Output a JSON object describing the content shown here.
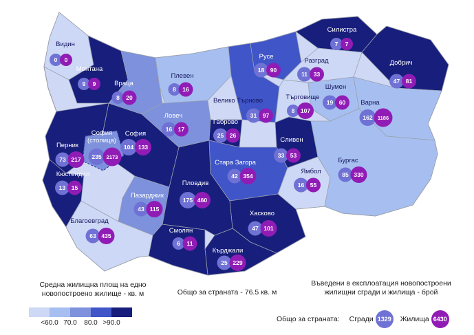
{
  "legend": {
    "title_line1": "Средна жилищна площ на едно",
    "title_line2": "новопостроено жилище - кв. м",
    "ticks": [
      "<60.0",
      "70.0",
      "80.0",
      ">90.0"
    ],
    "class_colors": [
      "#ccd8f6",
      "#a6bff0",
      "#7d91dd",
      "#3f55c8",
      "#171e7b"
    ]
  },
  "country_average": "Общо за страната - 76.5 кв. м",
  "right_legend": {
    "title_line1": "Въведени в експлоатация новопостроени",
    "title_line2": "жилищни сгради и жилища - брой",
    "totals_label": "Общо за страната:",
    "buildings_label": "Сгради",
    "buildings_total": "1329",
    "dwellings_label": "Жилища",
    "dwellings_total": "6430"
  },
  "colors": {
    "buildings_circle": "#6f72d4",
    "dwellings_circle": "#911cb5",
    "label_dark": "#17175f",
    "label_light": "#ffffff",
    "border": "#9aa0ae",
    "outline_fill": "#cfd9f5"
  },
  "map": {
    "regions": [
      {
        "id": "vidin",
        "name": "Видин",
        "buildings": 0,
        "dwellings": 0,
        "area_class": 1,
        "label": "dark"
      },
      {
        "id": "montana",
        "name": "Монтана",
        "buildings": 9,
        "dwellings": 9,
        "area_class": 5,
        "label": "light"
      },
      {
        "id": "vratsa",
        "name": "Враца",
        "buildings": 8,
        "dwellings": 20,
        "area_class": 3,
        "label": "light"
      },
      {
        "id": "pleven",
        "name": "Плевен",
        "buildings": 8,
        "dwellings": 16,
        "area_class": 2,
        "label": "dark"
      },
      {
        "id": "lovech",
        "name": "Ловеч",
        "buildings": 16,
        "dwellings": 17,
        "area_class": 3,
        "label": "light"
      },
      {
        "id": "veliko_tarnovo",
        "name": "Велико Търново",
        "buildings": 31,
        "dwellings": 97,
        "area_class": 4,
        "label": "dark"
      },
      {
        "id": "ruse",
        "name": "Русе",
        "buildings": 18,
        "dwellings": 90,
        "area_class": 4,
        "label": "light"
      },
      {
        "id": "silistra",
        "name": "Силистра",
        "buildings": 7,
        "dwellings": 7,
        "area_class": 5,
        "label": "light"
      },
      {
        "id": "razgrad",
        "name": "Разград",
        "buildings": 11,
        "dwellings": 33,
        "area_class": 1,
        "label": "dark"
      },
      {
        "id": "targovishte",
        "name": "Търговище",
        "buildings": 8,
        "dwellings": 107,
        "area_class": 1,
        "label": "dark"
      },
      {
        "id": "shumen",
        "name": "Шумен",
        "buildings": 19,
        "dwellings": 60,
        "area_class": 2,
        "label": "dark"
      },
      {
        "id": "dobrich",
        "name": "Добрич",
        "buildings": 47,
        "dwellings": 81,
        "area_class": 5,
        "label": "light"
      },
      {
        "id": "varna",
        "name": "Варна",
        "buildings": 162,
        "dwellings": 1186,
        "area_class": 2,
        "label": "dark"
      },
      {
        "id": "gabrovo",
        "name": "Габрово",
        "buildings": 25,
        "dwellings": 26,
        "area_class": 5,
        "label": "light"
      },
      {
        "id": "sliven",
        "name": "Сливен",
        "buildings": 33,
        "dwellings": 53,
        "area_class": 5,
        "label": "light"
      },
      {
        "id": "stara_zagora",
        "name": "Стара Загора",
        "buildings": 42,
        "dwellings": 354,
        "area_class": 4,
        "label": "light"
      },
      {
        "id": "yambol",
        "name": "Ямбол",
        "buildings": 16,
        "dwellings": 55,
        "area_class": 1,
        "label": "dark"
      },
      {
        "id": "burgas",
        "name": "Бургас",
        "buildings": 85,
        "dwellings": 330,
        "area_class": 2,
        "label": "dark"
      },
      {
        "id": "haskovo",
        "name": "Хасково",
        "buildings": 47,
        "dwellings": 101,
        "area_class": 5,
        "label": "light"
      },
      {
        "id": "kardzhali",
        "name": "Кърджали",
        "buildings": 25,
        "dwellings": 229,
        "area_class": 5,
        "label": "light"
      },
      {
        "id": "smolyan",
        "name": "Смолян",
        "buildings": 6,
        "dwellings": 11,
        "area_class": 5,
        "label": "light"
      },
      {
        "id": "plovdiv",
        "name": "Пловдив",
        "buildings": 175,
        "dwellings": 460,
        "area_class": 5,
        "label": "light"
      },
      {
        "id": "pazardzhik",
        "name": "Пазарджик",
        "buildings": 43,
        "dwellings": 115,
        "area_class": 3,
        "label": "light"
      },
      {
        "id": "sofia_oblast",
        "name": "София",
        "buildings": 104,
        "dwellings": 133,
        "area_class": 5,
        "label": "light"
      },
      {
        "id": "pernik",
        "name": "Перник",
        "buildings": 73,
        "dwellings": 217,
        "area_class": 5,
        "label": "light"
      },
      {
        "id": "kyustendil",
        "name": "Кюстендил",
        "buildings": 13,
        "dwellings": 15,
        "area_class": 5,
        "label": "light"
      },
      {
        "id": "blagoevgrad",
        "name": "Благоевград",
        "buildings": 63,
        "dwellings": 435,
        "area_class": 1,
        "label": "dark"
      },
      {
        "id": "sofia_city",
        "name": "София (столица)",
        "label_lines": [
          "София",
          "(столица)"
        ],
        "buildings": 235,
        "dwellings": 2173,
        "area_class": 3,
        "label": "light"
      }
    ]
  },
  "chart_data": {
    "type": "heatmap",
    "title": "Въведени в експлоатация новопостроени жилищни сгради и жилища - брой",
    "subtitle": "Средна жилищна площ на едно новопостроено жилище - кв. м",
    "note": "Общо за страната - 76.5 кв. м",
    "legend_bins": [
      "<60.0",
      "70.0",
      "80.0",
      ">90.0"
    ],
    "categories": [
      "Видин",
      "Монтана",
      "Враца",
      "Плевен",
      "Ловеч",
      "Велико Търново",
      "Русе",
      "Силистра",
      "Разград",
      "Търговище",
      "Шумен",
      "Добрич",
      "Варна",
      "Габрово",
      "Сливен",
      "Стара Загора",
      "Ямбол",
      "Бургас",
      "Хасково",
      "Кърджали",
      "Смолян",
      "Пловдив",
      "Пазарджик",
      "София",
      "Перник",
      "Кюстендил",
      "Благоевград",
      "София (столица)"
    ],
    "series": [
      {
        "name": "Сгради",
        "values": [
          0,
          9,
          8,
          8,
          16,
          31,
          18,
          7,
          11,
          8,
          19,
          47,
          162,
          25,
          33,
          42,
          16,
          85,
          47,
          25,
          6,
          175,
          43,
          104,
          73,
          13,
          63,
          235
        ]
      },
      {
        "name": "Жилища",
        "values": [
          0,
          9,
          20,
          16,
          17,
          97,
          90,
          7,
          33,
          107,
          60,
          81,
          1186,
          26,
          53,
          354,
          55,
          330,
          101,
          229,
          11,
          460,
          115,
          133,
          217,
          15,
          435,
          2173
        ]
      }
    ],
    "totals": {
      "Сгради": 1329,
      "Жилища": 6430
    }
  }
}
